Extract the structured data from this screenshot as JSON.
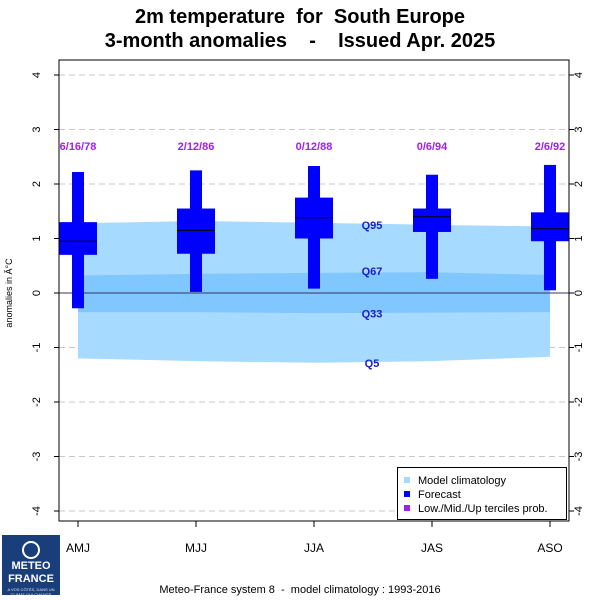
{
  "title_line1": "2m temperature  for  South Europe",
  "title_line2": "3-month anomalies    -    Issued Apr. 2025",
  "footer": "Meteo-France system 8  -  model climatology : 1993-2016",
  "logo": {
    "name_line1": "METEO",
    "name_line2": "FRANCE",
    "tagline": "A VOS CÔTÉS, DANS UN CLIMAT QUI CHANGE"
  },
  "colors": {
    "climatology_outer": "#a6daff",
    "climatology_inner": "#80c6ff",
    "forecast": "#0000ff",
    "tercile_text": "#a020f0",
    "quantile_label": "#1c1cc8"
  },
  "chart_data": {
    "type": "box",
    "ylabel": "anomalies in Â°C",
    "ylim": [
      -4.3,
      4.3
    ],
    "yticks": [
      -4,
      -3,
      -2,
      -1,
      0,
      1,
      2,
      3,
      4
    ],
    "grid": "horizontal dashed",
    "categories": [
      "AMJ",
      "MJJ",
      "JJA",
      "JAS",
      "ASO"
    ],
    "forecast": [
      {
        "min": -0.28,
        "q25": 0.7,
        "median": 0.95,
        "q75": 1.3,
        "max": 2.22,
        "tercile_probs": "6/16/78"
      },
      {
        "min": 0.02,
        "q25": 0.72,
        "median": 1.15,
        "q75": 1.55,
        "max": 2.25,
        "tercile_probs": "2/12/86"
      },
      {
        "min": 0.08,
        "q25": 1.0,
        "median": 1.38,
        "q75": 1.75,
        "max": 2.33,
        "tercile_probs": "0/12/88"
      },
      {
        "min": 0.26,
        "q25": 1.12,
        "median": 1.4,
        "q75": 1.55,
        "max": 2.17,
        "tercile_probs": "0/6/94"
      },
      {
        "min": 0.05,
        "q25": 0.95,
        "median": 1.18,
        "q75": 1.48,
        "max": 2.35,
        "tercile_probs": "2/6/92"
      }
    ],
    "climatology": {
      "q5": [
        -1.2,
        -1.25,
        -1.28,
        -1.25,
        -1.17
      ],
      "q33": [
        -0.35,
        -0.35,
        -0.37,
        -0.36,
        -0.35
      ],
      "q67": [
        0.32,
        0.35,
        0.37,
        0.38,
        0.33
      ],
      "q95": [
        1.28,
        1.32,
        1.29,
        1.25,
        1.22
      ]
    },
    "quantile_labels": [
      "Q95",
      "Q67",
      "Q33",
      "Q5"
    ],
    "legend": {
      "position": "bottom-right",
      "entries": [
        "Model climatology",
        "Forecast",
        "Low./Mid./Up terciles prob."
      ]
    }
  }
}
